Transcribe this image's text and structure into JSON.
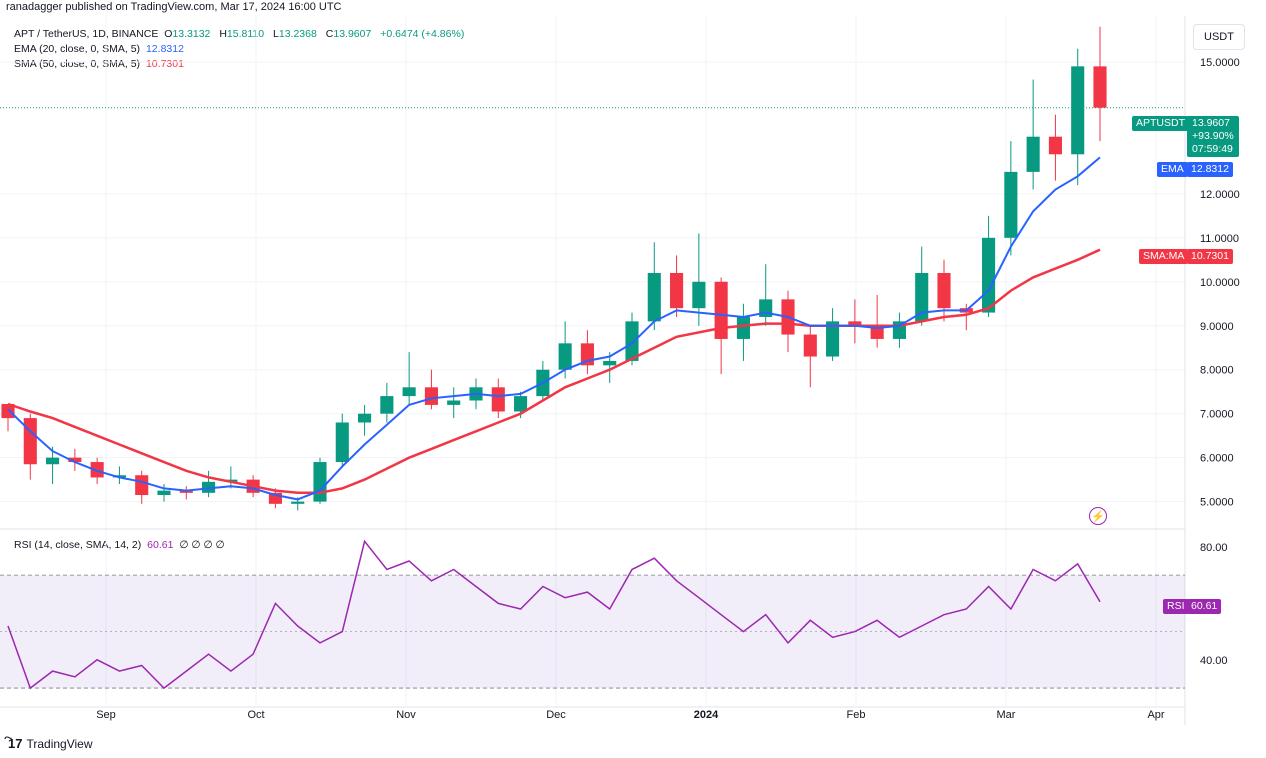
{
  "header": {
    "published": "ranadagger published on TradingView.com, Mar 17, 2024 16:00 UTC"
  },
  "symbol": {
    "name": "APT / TetherUS, 1D, BINANCE",
    "o_label": "O",
    "o_value": "13.3132",
    "h_label": "H",
    "h_value": "15.8110",
    "l_label": "L",
    "l_value": "13.2368",
    "c_label": "C",
    "c_value": "13.9607",
    "change": "+0.6474 (+4.86%)"
  },
  "ema": {
    "label": "EMA (20, close, 0, SMA, 5)",
    "value": "12.8312",
    "tag": "EMA",
    "color": "#2962ff"
  },
  "sma": {
    "label": "SMA (50, close, 0, SMA, 5)",
    "value": "10.7301",
    "tag": "SMA:MA",
    "color": "#f23645"
  },
  "rsi": {
    "label": "RSI (14, close, SMA, 14, 2)",
    "value": "60.61",
    "extras": "∅ ∅ ∅ ∅",
    "tag": "RSI",
    "color": "#9c27b0"
  },
  "price_tag": {
    "symbol": "APTUSDT",
    "price": "13.9607",
    "change": "+93.90%",
    "countdown": "07:59:49",
    "color": "#089981"
  },
  "currency": "USDT",
  "branding": "TradingView",
  "colors": {
    "up": "#089981",
    "down": "#f23645",
    "grid": "#f0f3fa",
    "rsi_band": "#7e57c2"
  },
  "chart_data": {
    "type": "candlestick",
    "price_axis": {
      "ylim": [
        4.4,
        16.0
      ],
      "ticks": [
        "5.0000",
        "6.0000",
        "7.0000",
        "8.0000",
        "9.0000",
        "10.0000",
        "11.0000",
        "12.0000",
        "15.0000"
      ]
    },
    "rsi_axis": {
      "ylim": [
        24,
        86
      ],
      "ticks": [
        "40.00",
        "80.00"
      ],
      "band": [
        30,
        70
      ]
    },
    "x_labels": [
      "Sep",
      "Oct",
      "Nov",
      "Dec",
      "2024",
      "Feb",
      "Mar",
      "Apr"
    ],
    "candles_ohlc_sampled": [
      [
        7.22,
        7.22,
        6.6,
        6.9
      ],
      [
        6.9,
        7.0,
        5.5,
        5.85
      ],
      [
        5.85,
        6.25,
        5.4,
        6.0
      ],
      [
        6.0,
        6.2,
        5.7,
        5.9
      ],
      [
        5.9,
        6.0,
        5.4,
        5.55
      ],
      [
        5.55,
        5.8,
        5.4,
        5.6
      ],
      [
        5.6,
        5.7,
        4.95,
        5.15
      ],
      [
        5.15,
        5.4,
        5.0,
        5.25
      ],
      [
        5.25,
        5.35,
        5.05,
        5.2
      ],
      [
        5.2,
        5.7,
        5.1,
        5.45
      ],
      [
        5.45,
        5.8,
        5.3,
        5.5
      ],
      [
        5.5,
        5.6,
        5.1,
        5.2
      ],
      [
        5.2,
        5.3,
        4.85,
        4.95
      ],
      [
        4.95,
        5.1,
        4.8,
        5.0
      ],
      [
        5.0,
        6.0,
        4.95,
        5.9
      ],
      [
        5.9,
        7.0,
        5.8,
        6.8
      ],
      [
        6.8,
        7.2,
        6.5,
        7.0
      ],
      [
        7.0,
        7.7,
        6.8,
        7.4
      ],
      [
        7.4,
        8.4,
        7.2,
        7.6
      ],
      [
        7.6,
        8.0,
        7.1,
        7.2
      ],
      [
        7.2,
        7.6,
        6.9,
        7.3
      ],
      [
        7.3,
        7.8,
        7.1,
        7.6
      ],
      [
        7.6,
        7.8,
        6.9,
        7.05
      ],
      [
        7.05,
        7.5,
        6.9,
        7.4
      ],
      [
        7.4,
        8.2,
        7.3,
        8.0
      ],
      [
        8.0,
        9.1,
        7.8,
        8.6
      ],
      [
        8.6,
        8.9,
        7.9,
        8.1
      ],
      [
        8.1,
        8.4,
        7.7,
        8.2
      ],
      [
        8.2,
        9.3,
        8.1,
        9.1
      ],
      [
        9.1,
        10.9,
        8.9,
        10.2
      ],
      [
        10.2,
        10.6,
        9.2,
        9.4
      ],
      [
        9.4,
        11.1,
        9.0,
        10.0
      ],
      [
        10.0,
        10.1,
        7.9,
        8.7
      ],
      [
        8.7,
        9.5,
        8.2,
        9.2
      ],
      [
        9.2,
        10.4,
        9.0,
        9.6
      ],
      [
        9.6,
        9.8,
        8.4,
        8.8
      ],
      [
        8.8,
        9.0,
        7.6,
        8.3
      ],
      [
        8.3,
        9.4,
        8.2,
        9.1
      ],
      [
        9.1,
        9.6,
        8.6,
        9.0
      ],
      [
        9.0,
        9.7,
        8.5,
        8.7
      ],
      [
        8.7,
        9.3,
        8.5,
        9.1
      ],
      [
        9.1,
        10.8,
        9.0,
        10.2
      ],
      [
        10.2,
        10.5,
        9.1,
        9.4
      ],
      [
        9.4,
        9.5,
        8.9,
        9.3
      ],
      [
        9.3,
        11.5,
        9.2,
        11.0
      ],
      [
        11.0,
        13.2,
        10.6,
        12.5
      ],
      [
        12.5,
        14.6,
        12.1,
        13.3
      ],
      [
        13.3,
        13.8,
        12.3,
        12.9
      ],
      [
        12.9,
        15.3,
        12.2,
        14.9
      ],
      [
        14.9,
        15.8,
        13.2,
        13.96
      ]
    ],
    "ema20_sampled": [
      7.1,
      6.6,
      6.15,
      5.9,
      5.7,
      5.55,
      5.45,
      5.3,
      5.25,
      5.3,
      5.35,
      5.3,
      5.15,
      5.05,
      5.25,
      5.8,
      6.3,
      6.75,
      7.2,
      7.35,
      7.4,
      7.45,
      7.4,
      7.45,
      7.7,
      8.0,
      8.2,
      8.3,
      8.6,
      9.1,
      9.35,
      9.3,
      9.25,
      9.2,
      9.3,
      9.2,
      9.0,
      9.0,
      9.0,
      8.95,
      9.0,
      9.3,
      9.35,
      9.35,
      9.8,
      10.8,
      11.6,
      12.1,
      12.4,
      12.83
    ],
    "sma50_sampled": [
      7.22,
      7.05,
      6.9,
      6.7,
      6.5,
      6.3,
      6.1,
      5.9,
      5.7,
      5.55,
      5.45,
      5.35,
      5.25,
      5.2,
      5.2,
      5.3,
      5.5,
      5.75,
      6.0,
      6.2,
      6.4,
      6.6,
      6.8,
      7.0,
      7.3,
      7.6,
      7.8,
      8.0,
      8.25,
      8.5,
      8.75,
      8.85,
      8.95,
      9.0,
      9.05,
      9.05,
      9.0,
      9.0,
      9.0,
      9.0,
      9.0,
      9.1,
      9.2,
      9.25,
      9.4,
      9.8,
      10.1,
      10.3,
      10.5,
      10.73
    ],
    "rsi_sampled": [
      52,
      30,
      36,
      34,
      40,
      36,
      38,
      30,
      36,
      42,
      36,
      42,
      60,
      52,
      46,
      50,
      82,
      72,
      75,
      68,
      72,
      66,
      60,
      58,
      66,
      62,
      64,
      58,
      72,
      76,
      68,
      62,
      56,
      50,
      56,
      46,
      54,
      48,
      50,
      54,
      48,
      52,
      56,
      58,
      66,
      58,
      72,
      68,
      74,
      60.61
    ]
  }
}
